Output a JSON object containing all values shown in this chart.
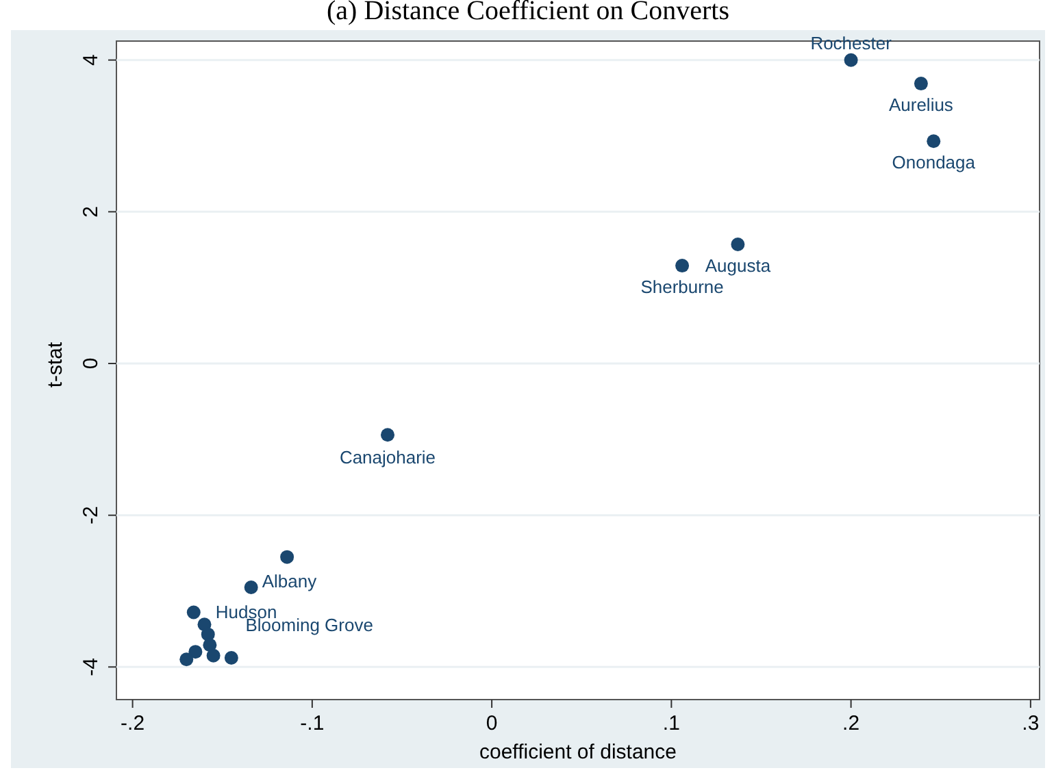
{
  "chart_data": {
    "type": "scatter",
    "title": "(a) Distance Coefficient on Converts",
    "xlabel": "coefficient of distance",
    "ylabel": "t-stat",
    "xlim": [
      -0.209,
      0.305
    ],
    "ylim": [
      -4.43,
      4.25
    ],
    "xticks": [
      {
        "value": -0.2,
        "label": "-.2"
      },
      {
        "value": -0.1,
        "label": "-.1"
      },
      0,
      {
        "value": 0.1,
        "label": ".1"
      },
      {
        "value": 0.2,
        "label": ".2"
      },
      {
        "value": 0.3,
        "label": ".3"
      }
    ],
    "yticks": [
      -4,
      -2,
      0,
      2,
      4
    ],
    "grid": "y",
    "marker": "circle",
    "series": [
      {
        "color": "#1a476f",
        "x": [
          0.2,
          0.239,
          0.246,
          0.137,
          0.106,
          -0.058,
          -0.114,
          -0.134,
          -0.166,
          -0.16,
          -0.158,
          -0.157,
          -0.165,
          -0.155,
          -0.145,
          -0.17
        ],
        "values": [
          4.0,
          3.69,
          2.93,
          1.57,
          1.29,
          -0.94,
          -2.55,
          -2.95,
          -3.28,
          -3.44,
          -3.57,
          -3.71,
          -3.8,
          -3.85,
          -3.88,
          -3.9
        ]
      }
    ],
    "annotations": [
      {
        "text": "Rochester",
        "x": 0.2,
        "y": 4.0
      },
      {
        "text": "Aurelius",
        "x": 0.239,
        "y": 3.69
      },
      {
        "text": "Onondaga",
        "x": 0.246,
        "y": 2.93
      },
      {
        "text": "Augusta",
        "x": 0.137,
        "y": 1.57
      },
      {
        "text": "Sherburne",
        "x": 0.106,
        "y": 1.29
      },
      {
        "text": "Canajoharie",
        "x": -0.058,
        "y": -0.94
      },
      {
        "text": "Albany",
        "x": -0.134,
        "y": -2.95
      },
      {
        "text": "Hudson",
        "x": -0.166,
        "y": -3.28
      },
      {
        "text": "Blooming Grove",
        "x": -0.16,
        "y": -3.44
      }
    ]
  }
}
